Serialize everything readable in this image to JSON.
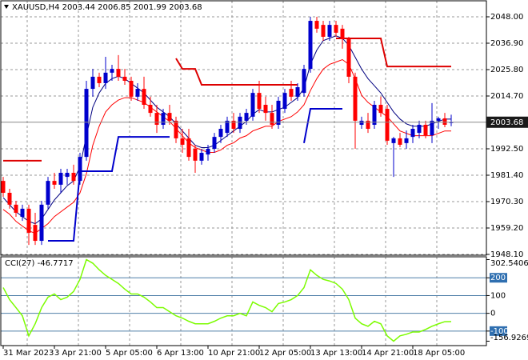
{
  "chart_data": [
    {
      "type": "candlestick",
      "title": "XAUUSD,H4  2003.44 2006.85 2001.99 2003.68",
      "up_color": "#0000cd",
      "down_color": "#ff0000",
      "open": [
        1979.0,
        1974.0,
        1969.0,
        1963.9,
        1967.3,
        1960.5,
        1953.8,
        1969.0,
        1979.0,
        1977.4,
        1980.7,
        1982.4,
        1979.0,
        1989.1,
        2017.7,
        2022.8,
        2020.1,
        2024.5,
        2026.1,
        2022.8,
        2021.1,
        2014.4,
        2017.7,
        2011.0,
        2007.6,
        2002.6,
        2007.6,
        2004.3,
        1996.9,
        1996.9,
        1992.5,
        1987.5,
        1990.1,
        1992.5,
        1997.5,
        1999.2,
        2004.3,
        2000.9,
        2004.3,
        2006.0,
        2016.0,
        2011.0,
        2007.6,
        2002.6,
        2009.3,
        2017.7,
        2014.4,
        2016.0,
        2026.1,
        2046.3,
        2044.6,
        2039.6,
        2044.6,
        2043.0,
        2038.6,
        2022.8,
        2002.6,
        2004.3,
        2002.6,
        2011.0,
        2009.3,
        1994.9,
        1996.9,
        1994.9,
        1997.5,
        1999.2,
        2002.6,
        1998.2,
        2004.3,
        2005.3,
        2003.44
      ],
      "high": [
        1980.7,
        1975.7,
        1970.6,
        1969.0,
        1969.0,
        1965.6,
        1970.6,
        1980.7,
        1982.4,
        1984.1,
        1984.1,
        1985.8,
        1990.8,
        2021.1,
        2026.1,
        2024.5,
        2031.2,
        2027.8,
        2031.9,
        2026.1,
        2022.8,
        2020.1,
        2022.8,
        2014.4,
        2011.0,
        2009.3,
        2011.0,
        2006.0,
        2000.9,
        2000.9,
        1994.2,
        1992.5,
        1994.2,
        1999.2,
        2002.6,
        2006.0,
        2007.6,
        2007.6,
        2009.3,
        2017.7,
        2021.1,
        2014.4,
        2011.0,
        2014.4,
        2017.7,
        2021.1,
        2020.1,
        2027.8,
        2048.0,
        2048.0,
        2046.3,
        2046.3,
        2046.3,
        2044.6,
        2039.6,
        2024.5,
        2006.0,
        2007.6,
        2012.7,
        2014.4,
        2011.0,
        1997.5,
        1999.2,
        2000.2,
        2002.6,
        2004.3,
        2004.3,
        2011.7,
        2006.0,
        2007.6,
        2006.85
      ],
      "low": [
        1972.3,
        1967.3,
        1963.9,
        1962.2,
        1952.1,
        1952.1,
        1952.1,
        1967.3,
        1975.7,
        1974.0,
        1977.4,
        1977.4,
        1977.4,
        1987.5,
        2014.4,
        2018.4,
        2017.7,
        2021.1,
        2021.1,
        2019.4,
        2012.7,
        2012.7,
        2009.3,
        2006.0,
        1999.2,
        2000.9,
        2002.6,
        1994.9,
        1990.8,
        1987.5,
        1982.4,
        1985.8,
        1987.5,
        1990.8,
        1994.9,
        1997.5,
        1999.2,
        1999.2,
        2002.6,
        2004.3,
        2007.6,
        2004.3,
        2000.9,
        2000.9,
        2007.6,
        2012.7,
        2012.7,
        2014.4,
        2024.5,
        2041.3,
        2037.9,
        2037.9,
        2039.6,
        2034.6,
        2020.1,
        1992.5,
        2000.9,
        1999.2,
        2000.9,
        2006.0,
        1994.2,
        1980.7,
        1993.2,
        1992.5,
        1994.9,
        1996.9,
        1996.9,
        1994.9,
        2000.9,
        2001.6,
        2001.99
      ],
      "close": [
        1974.0,
        1969.0,
        1965.6,
        1967.3,
        1957.2,
        1953.8,
        1969.0,
        1979.0,
        1977.4,
        1982.4,
        1982.4,
        1979.0,
        1989.1,
        2017.7,
        2022.8,
        2020.1,
        2024.5,
        2026.1,
        2022.8,
        2021.1,
        2014.4,
        2017.7,
        2011.0,
        2007.6,
        2002.6,
        2007.6,
        2004.3,
        1996.9,
        1994.2,
        1989.1,
        1987.5,
        1990.8,
        1992.5,
        1997.5,
        2000.9,
        2004.3,
        2000.9,
        2006.0,
        2007.6,
        2016.0,
        2009.3,
        2007.6,
        2002.6,
        2012.7,
        2016.0,
        2014.4,
        2018.4,
        2026.1,
        2046.3,
        2043.0,
        2039.6,
        2044.6,
        2041.3,
        2038.6,
        2022.8,
        2004.3,
        2004.3,
        2000.9,
        2011.0,
        2007.6,
        1995.9,
        1996.9,
        1994.2,
        1996.9,
        2000.9,
        2002.6,
        1998.2,
        2004.3,
        2005.3,
        2002.6,
        2003.68
      ],
      "lines": [
        {
          "color": "#000080",
          "width": 1,
          "values": [
            1972,
            1969,
            1966,
            1964,
            1962,
            1961,
            1963,
            1967,
            1971,
            1974,
            1977,
            1979,
            1985,
            1998,
            2010,
            2016,
            2020,
            2022,
            2023,
            2022,
            2020,
            2018,
            2016,
            2013,
            2010,
            2008,
            2006,
            2003,
            2000,
            1997,
            1994,
            1993,
            1993,
            1994,
            1996,
            1998,
            2000,
            2002,
            2004,
            2007,
            2009,
            2008,
            2008,
            2009,
            2010,
            2012,
            2014,
            2018,
            2028,
            2034,
            2038,
            2039,
            2040,
            2039,
            2036,
            2031,
            2026,
            2022,
            2019,
            2016,
            2012,
            2008,
            2005,
            2003,
            2002,
            2002,
            2002,
            2003,
            2004,
            2005,
            2005
          ]
        },
        {
          "color": "#ff0000",
          "width": 1,
          "values": [
            1967,
            1965,
            1962,
            1960,
            1958,
            1957,
            1959,
            1961,
            1964,
            1966,
            1968,
            1970,
            1974,
            1982,
            1994,
            2002,
            2008,
            2011,
            2013,
            2014,
            2014,
            2013,
            2012,
            2010,
            2008,
            2006,
            2004,
            2001,
            1998,
            1995,
            1993,
            1992,
            1991,
            1991,
            1992,
            1994,
            1995,
            1997,
            1998,
            2000,
            2001,
            2002,
            2002,
            2004,
            2005,
            2006,
            2008,
            2011,
            2017,
            2022,
            2026,
            2028,
            2029,
            2030,
            2028,
            2022,
            2015,
            2012,
            2010,
            2008,
            2006,
            2003,
            2000,
            1999,
            1998,
            1998,
            1998,
            1998,
            1999,
            2000,
            2000
          ]
        },
        {
          "color": "#dd0000",
          "width": 2,
          "values": [
            1987.5,
            1987.5,
            1987.5,
            1987.5,
            1987.5,
            1987.5,
            1987.5,
            null,
            null,
            null,
            null,
            null,
            null,
            null,
            null,
            null,
            null,
            null,
            null,
            null,
            null,
            null,
            null,
            null,
            null,
            null,
            null,
            2030.5,
            2026.1,
            2026.1,
            2026.1,
            2019.4,
            2019.4,
            2019.4,
            2019.4,
            2019.4,
            2019.4,
            2019.4,
            2019.4,
            2019.4,
            2019.4,
            2019.4,
            2019.4,
            2019.4,
            2019.4,
            2019.4,
            2019.4,
            null,
            null,
            null,
            null,
            null,
            2038.9,
            2038.9,
            2038.9,
            2038.9,
            2038.9,
            2038.9,
            2038.9,
            2038.9,
            2027.1,
            2027.1,
            2027.1,
            2027.1,
            2027.1,
            2027.1,
            2027.1,
            2027.1,
            2027.1,
            2027.1,
            2027.1
          ]
        },
        {
          "color": "#0000cc",
          "width": 2,
          "values": [
            null,
            null,
            null,
            null,
            null,
            null,
            null,
            1953.8,
            1953.8,
            1953.8,
            1953.8,
            1953.8,
            1983.1,
            1983.1,
            1983.1,
            1983.1,
            1983.1,
            1983.1,
            1997.5,
            1997.5,
            1997.5,
            1997.5,
            1997.5,
            1997.5,
            1997.5,
            1997.5,
            1997.5,
            null,
            null,
            null,
            null,
            null,
            null,
            null,
            null,
            null,
            null,
            null,
            null,
            null,
            null,
            null,
            null,
            null,
            null,
            null,
            null,
            1994.9,
            2009.3,
            2009.3,
            2009.3,
            2009.3,
            2009.3,
            2009.3,
            null,
            null,
            null,
            null,
            null,
            null,
            null,
            null,
            null,
            null,
            null,
            null,
            null,
            null,
            null,
            null,
            null
          ]
        }
      ],
      "current_price": 2003.68,
      "ylim": [
        1947.76,
        2054.73
      ],
      "yticks": [
        {
          "value": 2048,
          "label": "2048.00"
        },
        {
          "value": 2036.9,
          "label": "2036.90"
        },
        {
          "value": 2025.8,
          "label": "2025.80"
        },
        {
          "value": 2014.7,
          "label": "2014.70"
        },
        {
          "value": 1992.5,
          "label": "1992.50"
        },
        {
          "value": 1981.4,
          "label": "1981.40"
        },
        {
          "value": 1970.3,
          "label": "1970.30"
        },
        {
          "value": 1959.2,
          "label": "1959.20"
        },
        {
          "value": 1948.1,
          "label": "1948.10"
        }
      ],
      "grid": true
    },
    {
      "type": "line",
      "title": "CCI(27) -46.7717",
      "color": "#7cfc00",
      "categories": [
        "31 Mar 2023",
        null,
        null,
        null,
        null,
        null,
        null,
        null,
        "3 Apr 21:00",
        null,
        null,
        null,
        null,
        null,
        null,
        null,
        "5 Apr 05:00",
        null,
        null,
        null,
        null,
        null,
        null,
        null,
        "6 Apr 13:00",
        null,
        null,
        null,
        null,
        null,
        null,
        null,
        "10 Apr 21:00",
        null,
        null,
        null,
        null,
        null,
        null,
        null,
        "12 Apr 05:00",
        null,
        null,
        null,
        null,
        null,
        null,
        null,
        "13 Apr 13:00",
        null,
        null,
        null,
        null,
        null,
        null,
        null,
        "14 Apr 21:00",
        null,
        null,
        null,
        null,
        null,
        null,
        null,
        "18 Apr 05:00",
        null,
        null,
        null,
        null,
        null,
        null
      ],
      "values": [
        145,
        77,
        32,
        -14,
        -127,
        -59,
        32,
        91,
        109,
        77,
        91,
        123,
        191,
        302.5,
        282,
        245,
        214,
        191,
        168,
        136,
        109,
        109,
        91,
        64,
        32,
        32,
        9,
        -14,
        -27,
        -45,
        -59,
        -59,
        -59,
        -45,
        -27,
        -14,
        -14,
        0,
        -14,
        64,
        45,
        32,
        9,
        55,
        64,
        77,
        100,
        145,
        245,
        214,
        191,
        182,
        168,
        136,
        77,
        -27,
        -59,
        -73,
        -45,
        -59,
        -127,
        -156.9,
        -127,
        -118,
        -105,
        -105,
        -91,
        -73,
        -59,
        -47,
        -46.7717
      ],
      "ylim": [
        -181.8,
        318.2
      ],
      "yticks": [
        302.5406,
        200,
        100,
        0,
        -100,
        -156.9269
      ],
      "tick_highlight": [
        false,
        true,
        false,
        false,
        true,
        false
      ]
    }
  ]
}
